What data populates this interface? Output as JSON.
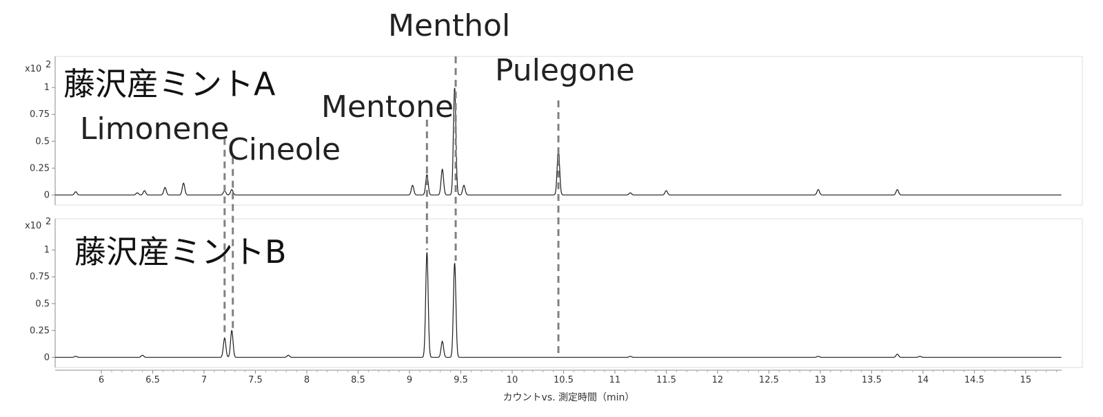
{
  "chart_data": {
    "type": "line",
    "xlabel": "カウントvs. 測定時間（min）",
    "xlim": [
      5.55,
      15.35
    ],
    "x_ticks": [
      6,
      6.5,
      7,
      7.5,
      8,
      8.5,
      9,
      9.5,
      10,
      10.5,
      11,
      11.5,
      12,
      12.5,
      13,
      13.5,
      14,
      14.5,
      15
    ],
    "x_tick_labels": [
      "6",
      "6.5",
      "7",
      "7.5",
      "8",
      "8.5",
      "9",
      "9.5",
      "10",
      "10.5",
      "11",
      "11.5",
      "12",
      "12.5",
      "13",
      "13.5",
      "14",
      "14.5",
      "15"
    ],
    "panels": [
      {
        "title": "藤沢産ミントA",
        "y_multiplier": "x10",
        "y_exponent": "2",
        "ylim": [
          -0.03,
          1.2
        ],
        "y_ticks": [
          0,
          0.25,
          0.5,
          0.75,
          1
        ],
        "y_tick_labels": [
          "0",
          "0.25",
          "0.5",
          "0.75",
          "1"
        ],
        "peaks": [
          {
            "x": 5.75,
            "y": 0.03
          },
          {
            "x": 6.35,
            "y": 0.02
          },
          {
            "x": 6.42,
            "y": 0.04
          },
          {
            "x": 6.62,
            "y": 0.07
          },
          {
            "x": 6.8,
            "y": 0.11
          },
          {
            "x": 7.2,
            "y": 0.04
          },
          {
            "x": 7.27,
            "y": 0.05
          },
          {
            "x": 9.03,
            "y": 0.09
          },
          {
            "x": 9.17,
            "y": 0.19
          },
          {
            "x": 9.32,
            "y": 0.24
          },
          {
            "x": 9.44,
            "y": 1.0
          },
          {
            "x": 9.53,
            "y": 0.09
          },
          {
            "x": 10.45,
            "y": 0.43
          },
          {
            "x": 11.15,
            "y": 0.02
          },
          {
            "x": 11.5,
            "y": 0.04
          },
          {
            "x": 12.98,
            "y": 0.05
          },
          {
            "x": 13.75,
            "y": 0.05
          }
        ]
      },
      {
        "title": "藤沢産ミントB",
        "y_multiplier": "x10",
        "y_exponent": "2",
        "ylim": [
          -0.03,
          1.2
        ],
        "y_ticks": [
          0,
          0.25,
          0.5,
          0.75,
          1
        ],
        "y_tick_labels": [
          "0",
          "0.25",
          "0.5",
          "0.75",
          "1"
        ],
        "peaks": [
          {
            "x": 5.75,
            "y": 0.01
          },
          {
            "x": 6.4,
            "y": 0.02
          },
          {
            "x": 7.2,
            "y": 0.18
          },
          {
            "x": 7.27,
            "y": 0.25
          },
          {
            "x": 7.82,
            "y": 0.02
          },
          {
            "x": 9.17,
            "y": 0.98
          },
          {
            "x": 9.32,
            "y": 0.15
          },
          {
            "x": 9.44,
            "y": 0.88
          },
          {
            "x": 11.15,
            "y": 0.01
          },
          {
            "x": 12.98,
            "y": 0.01
          },
          {
            "x": 13.75,
            "y": 0.03
          },
          {
            "x": 13.97,
            "y": 0.01
          }
        ]
      }
    ],
    "annotations": [
      {
        "label": "Limonene",
        "x": 7.2
      },
      {
        "label": "Cineole",
        "x": 7.28
      },
      {
        "label": "Mentone",
        "x": 9.17
      },
      {
        "label": "Menthol",
        "x": 9.45
      },
      {
        "label": "Pulegone",
        "x": 10.45
      }
    ]
  }
}
